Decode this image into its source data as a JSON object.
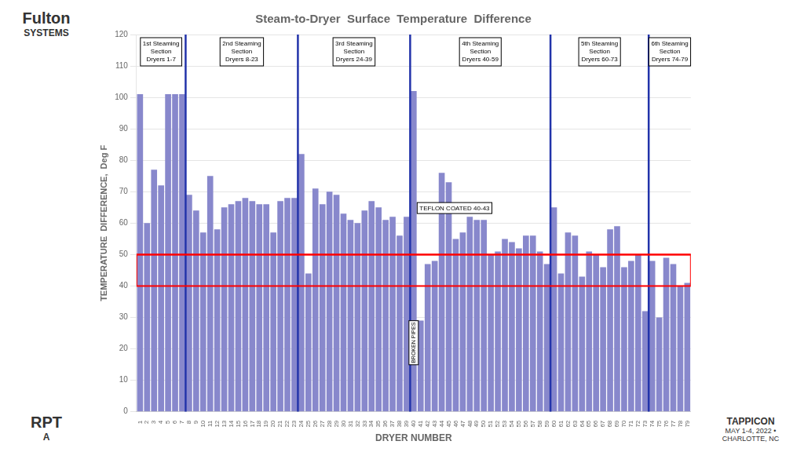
{
  "chart_data": {
    "type": "bar",
    "title": "Steam-to-Dryer  Surface  Temperature  Difference",
    "xlabel": "DRYER NUMBER",
    "ylabel": "TEMPERATURE  DIFFERENCE,  Deg F",
    "categories": [
      "1",
      "2",
      "3",
      "4",
      "5",
      "6",
      "7",
      "8",
      "9",
      "10",
      "11",
      "12",
      "13",
      "14",
      "15",
      "16",
      "17",
      "18",
      "19",
      "20",
      "21",
      "22",
      "23",
      "24",
      "25",
      "26",
      "27",
      "28",
      "29",
      "30",
      "31",
      "32",
      "33",
      "34",
      "35",
      "36",
      "37",
      "38",
      "39",
      "40",
      "41",
      "42",
      "43",
      "44",
      "45",
      "46",
      "47",
      "48",
      "49",
      "50",
      "51",
      "52",
      "53",
      "54",
      "55",
      "56",
      "57",
      "58",
      "59",
      "60",
      "61",
      "62",
      "63",
      "64",
      "65",
      "66",
      "67",
      "68",
      "69",
      "70",
      "71",
      "72",
      "73",
      "74",
      "75",
      "76",
      "77",
      "78",
      "79"
    ],
    "values": [
      101,
      60,
      77,
      72,
      101,
      101,
      101,
      69,
      64,
      57,
      75,
      58,
      65,
      66,
      67,
      68,
      67,
      66,
      66,
      57,
      67,
      68,
      68,
      82,
      44,
      71,
      66,
      70,
      69,
      63,
      61,
      60,
      64,
      67,
      65,
      61,
      62,
      56,
      62,
      102,
      29,
      47,
      48,
      76,
      73,
      55,
      57,
      62,
      61,
      61,
      50,
      51,
      55,
      54,
      52,
      56,
      56,
      51,
      47,
      65,
      44,
      57,
      56,
      43,
      51,
      50,
      46,
      58,
      59,
      46,
      48,
      50,
      32,
      48,
      30,
      49,
      47,
      40,
      41
    ],
    "color": "#8888cc",
    "ylim": [
      0,
      120
    ],
    "yticks": [
      0,
      10,
      20,
      30,
      40,
      50,
      60,
      70,
      80,
      90,
      100,
      110,
      120
    ],
    "grid": "y",
    "sections": [
      {
        "label": "1st Steaming\nSection\nDryers 1-7",
        "from": "1",
        "to": "7"
      },
      {
        "label": "2nd Steaming\nSection\nDryers 8-23",
        "from": "8",
        "to": "23"
      },
      {
        "label": "3rd Steaming\nSection\nDryers 24-39",
        "from": "24",
        "to": "39"
      },
      {
        "label": "4th Steaming\nSection\nDryers 40-59",
        "from": "40",
        "to": "59"
      },
      {
        "label": "5th Steaming\nSection\nDryers 60-73",
        "from": "60",
        "to": "73"
      },
      {
        "label": "6th Steaming\nSection\nDryers 74-79",
        "from": "74",
        "to": "79"
      }
    ],
    "divider_color": "#2233aa",
    "reference_line": {
      "y": 50,
      "color": "red"
    },
    "reference_band": {
      "y": [
        40,
        50
      ],
      "color": "red"
    },
    "annotations": [
      "TEFLON COATED 40-43",
      "BROKEN PIPES"
    ],
    "logos": [
      "Fulton",
      "SYSTEMS",
      "RPT",
      "A",
      "TAPPICON",
      "MAY 1-4, 2022 • CHARLOTTE, NC"
    ]
  }
}
